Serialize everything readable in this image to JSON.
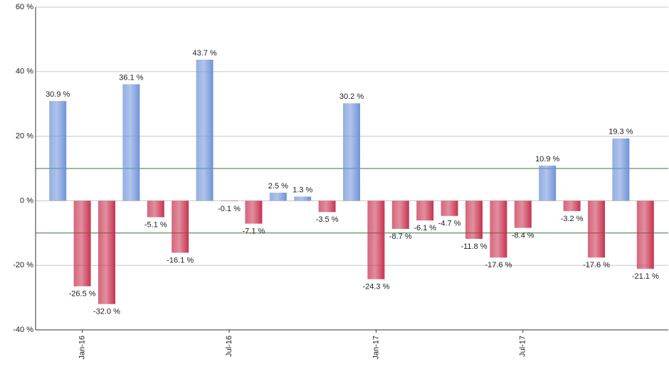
{
  "chart_data": {
    "type": "bar",
    "categories": [
      null,
      "Jan-16",
      null,
      null,
      null,
      null,
      null,
      "Jul-16",
      null,
      null,
      null,
      null,
      null,
      "Jan-17",
      null,
      null,
      null,
      null,
      null,
      "Jul-17",
      null,
      null,
      null,
      null,
      null
    ],
    "values": [
      30.9,
      -26.5,
      -32.0,
      36.1,
      -5.1,
      -16.1,
      43.7,
      -0.1,
      -7.1,
      2.5,
      1.3,
      -3.5,
      30.2,
      -24.3,
      -8.7,
      -6.1,
      -4.7,
      -11.8,
      -17.6,
      -8.4,
      10.9,
      -3.2,
      -17.6,
      19.3,
      -21.1
    ],
    "value_labels": [
      "30.9 %",
      "-26.5 %",
      "-32.0 %",
      "36.1 %",
      "-5.1 %",
      "-16.1 %",
      "43.7 %",
      "-0.1 %",
      "-7.1 %",
      "2.5 %",
      "1.3 %",
      "-3.5 %",
      "30.2 %",
      "-24.3 %",
      "-8.7 %",
      "-6.1 %",
      "-4.7 %",
      "-11.8 %",
      "-17.6 %",
      "-8.4 %",
      "10.9 %",
      "-3.2 %",
      "-17.6 %",
      "19.3 %",
      "-21.1 %"
    ],
    "positive_color": "#6f93d9",
    "negative_color": "#c8324f",
    "ylim": [
      -40,
      60
    ],
    "yticks": [
      {
        "value": -40,
        "label": "-40 %"
      },
      {
        "value": -20,
        "label": "-20 %"
      },
      {
        "value": 0,
        "label": "0 %"
      },
      {
        "value": 20,
        "label": "20 %"
      },
      {
        "value": 40,
        "label": "40 %"
      },
      {
        "value": 60,
        "label": "60 %"
      }
    ],
    "grid": true,
    "reference_lines": [
      10,
      -10
    ],
    "reference_color": "#2e7d32"
  }
}
